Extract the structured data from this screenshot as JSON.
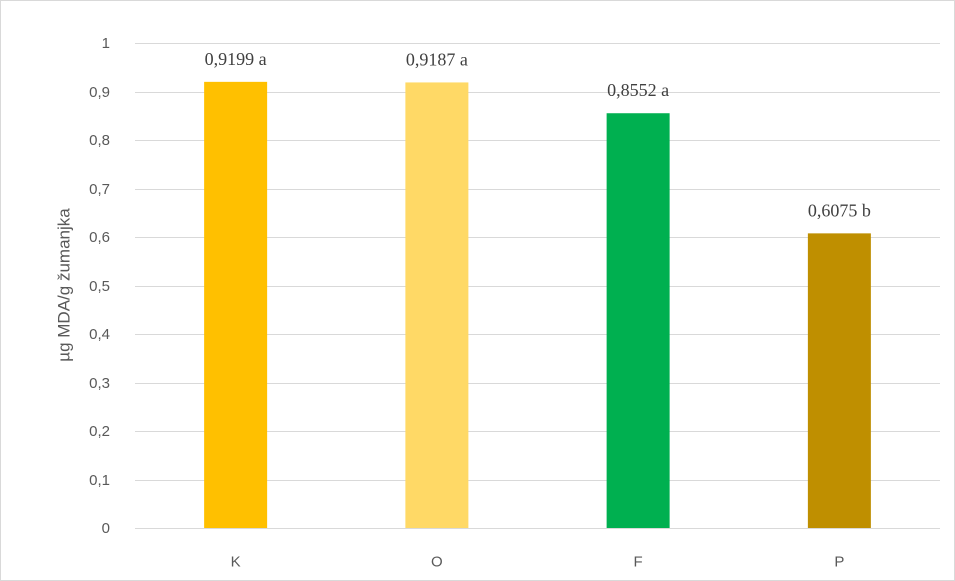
{
  "chart_data": {
    "type": "bar",
    "categories": [
      "K",
      "O",
      "F",
      "P"
    ],
    "values": [
      0.9199,
      0.9187,
      0.8552,
      0.6075
    ],
    "data_labels": [
      "0,9199 a",
      "0,9187 a",
      "0,8552 a",
      "0,6075 b"
    ],
    "colors": [
      "#FFC000",
      "#FFD966",
      "#00B050",
      "#BF8F00"
    ],
    "ylabel": "µg MDA/g žumanjka",
    "ylim": [
      0,
      1
    ],
    "yticks": [
      "0",
      "0,1",
      "0,2",
      "0,3",
      "0,4",
      "0,5",
      "0,6",
      "0,7",
      "0,8",
      "0,9",
      "1"
    ],
    "ytick_values": [
      0,
      0.1,
      0.2,
      0.3,
      0.4,
      0.5,
      0.6,
      0.7,
      0.8,
      0.9,
      1
    ],
    "grid": true,
    "legend": "none"
  }
}
